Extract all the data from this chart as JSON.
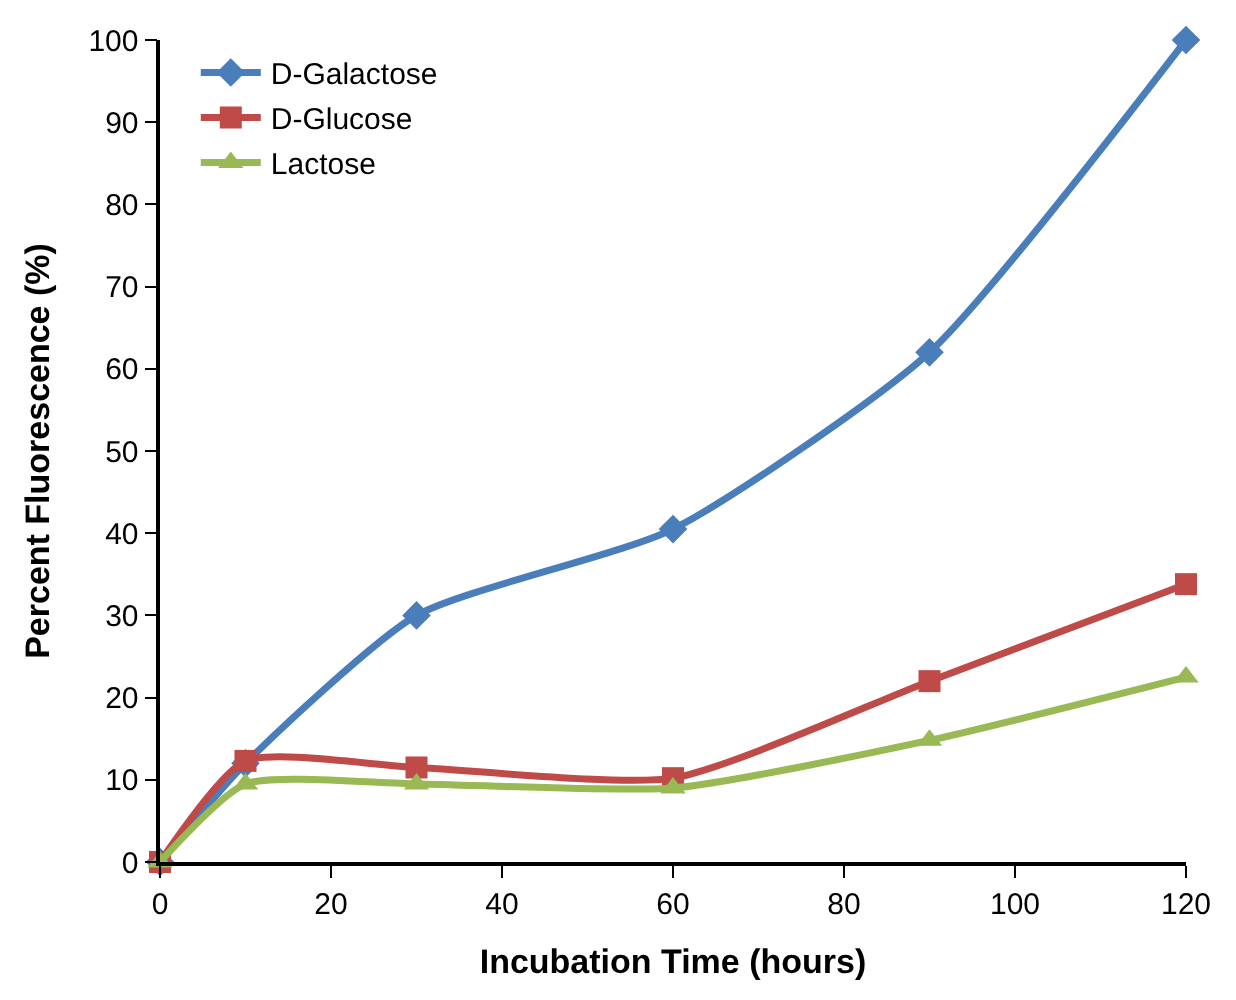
{
  "chart_data": {
    "type": "line",
    "xlabel": "Incubation Time (hours)",
    "ylabel": "Percent Fluorescence (%)",
    "x": [
      0,
      10,
      30,
      60,
      90,
      120
    ],
    "series": [
      {
        "name": "D-Galactose",
        "color": "#4a7ebb",
        "marker": "diamond",
        "values": [
          0,
          12,
          30,
          40.5,
          62,
          100
        ]
      },
      {
        "name": "D-Glucose",
        "color": "#be4b48",
        "marker": "square",
        "values": [
          0,
          12.3,
          11.5,
          10.2,
          22,
          33.8
        ]
      },
      {
        "name": "Lactose",
        "color": "#98b954",
        "marker": "triangle",
        "values": [
          0,
          9.5,
          9.5,
          9,
          14.8,
          22.5
        ]
      }
    ],
    "xlim": [
      0,
      120
    ],
    "xticks": [
      0,
      20,
      40,
      60,
      80,
      100,
      120
    ],
    "ylim": [
      0,
      100
    ],
    "yticks": [
      0,
      10,
      20,
      30,
      40,
      50,
      60,
      70,
      80,
      90,
      100
    ],
    "legend": "top left"
  }
}
